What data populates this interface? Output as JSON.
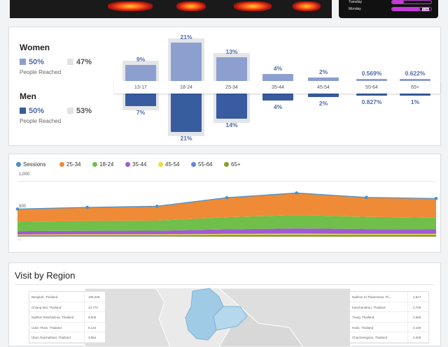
{
  "colors": {
    "female": "#8d9fcf",
    "male": "#385c9f",
    "label": "#4f6aa8"
  },
  "top_legend": {
    "rows": [
      {
        "label": "Tuesday",
        "value": "",
        "fill": 0.3
      },
      {
        "label": "Monday",
        "value": "1.3x",
        "fill": 0.72
      }
    ]
  },
  "audience": {
    "women": {
      "title": "Women",
      "primary_pct": "50%",
      "secondary_pct": "47%",
      "caption": "People Reached"
    },
    "men": {
      "title": "Men",
      "primary_pct": "50%",
      "secondary_pct": "53%",
      "caption": "People Reached"
    },
    "age_groups": [
      {
        "label": "13-17",
        "women_value": 9,
        "women": "9%",
        "men_value": 7,
        "men": "7%"
      },
      {
        "label": "18-24",
        "women_value": 21,
        "women": "21%",
        "men_value": 21,
        "men": "21%"
      },
      {
        "label": "25-34",
        "women_value": 13,
        "women": "13%",
        "men_value": 14,
        "men": "14%"
      },
      {
        "label": "35-44",
        "women_value": 4,
        "women": "4%",
        "men_value": 4,
        "men": "4%"
      },
      {
        "label": "45-54",
        "women_value": 2,
        "women": "2%",
        "men_value": 2,
        "men": "2%"
      },
      {
        "label": "55-64",
        "women_value": 0.569,
        "women": "0.569%",
        "men_value": 0.827,
        "men": "0.827%"
      },
      {
        "label": "65+",
        "women_value": 0.622,
        "women": "0.622%",
        "men_value": 1,
        "men": "1%"
      }
    ]
  },
  "chart_data": {
    "type": "area",
    "title": "",
    "legend": [
      {
        "name": "Sessions",
        "color": "#4a90c9"
      },
      {
        "name": "25-34",
        "color": "#ef8b36"
      },
      {
        "name": "18-24",
        "color": "#6fbf4a"
      },
      {
        "name": "35-44",
        "color": "#a15ad3"
      },
      {
        "name": "45-54",
        "color": "#f0dd3c"
      },
      {
        "name": "55-64",
        "color": "#5f87d9"
      },
      {
        "name": "65+",
        "color": "#8f9b2a"
      }
    ],
    "legend_position": "top-left",
    "y_ticks": [
      "1,000",
      "500",
      "..."
    ],
    "ylim": [
      0,
      1000
    ],
    "x": [
      0,
      1,
      2,
      3,
      4,
      5,
      6
    ],
    "sessions": [
      500,
      530,
      550,
      705,
      790,
      710,
      690
    ],
    "stack_order": [
      "65+",
      "55-64",
      "45-54",
      "35-44",
      "18-24",
      "25-34"
    ],
    "series": [
      {
        "name": "65+",
        "values": [
          10,
          10,
          10,
          12,
          12,
          12,
          12
        ]
      },
      {
        "name": "55-64",
        "values": [
          15,
          16,
          16,
          20,
          22,
          20,
          20
        ]
      },
      {
        "name": "45-54",
        "values": [
          15,
          16,
          16,
          20,
          22,
          20,
          20
        ]
      },
      {
        "name": "35-44",
        "values": [
          60,
          64,
          66,
          80,
          94,
          86,
          80
        ]
      },
      {
        "name": "18-24",
        "values": [
          170,
          176,
          182,
          220,
          240,
          220,
          210
        ]
      },
      {
        "name": "25-34",
        "values": [
          230,
          248,
          260,
          353,
          400,
          352,
          348
        ]
      }
    ]
  },
  "region": {
    "title": "Visit by Region",
    "left_table": [
      {
        "name": "Bangkok, Thailand",
        "value": "186,028"
      },
      {
        "name": "Chiang Mai, Thailand",
        "value": "10,770"
      },
      {
        "name": "Nakhon Ratchasima, Thailand",
        "value": "8,606"
      },
      {
        "name": "Udon Thani, Thailand",
        "value": "5,144"
      },
      {
        "name": "Ubon Ratchathani, Thailand",
        "value": "3,864"
      }
    ],
    "right_table": [
      {
        "name": "Nakhon Si Thammarat, Th...",
        "value": "2,817"
      },
      {
        "name": "Kanchanaburi, Thailand",
        "value": "2,709"
      },
      {
        "name": "Trang, Thailand",
        "value": "2,568"
      },
      {
        "name": "Krabi, Thailand",
        "value": "2,430"
      },
      {
        "name": "Chachoengsao, Thailand",
        "value": "2,400"
      }
    ]
  }
}
